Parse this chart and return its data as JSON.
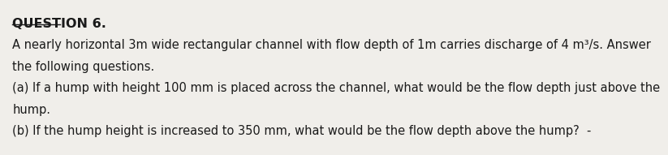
{
  "title": "QUESTION 6.",
  "line1": "A nearly horizontal 3m wide rectangular channel with flow depth of 1m carries discharge of 4 m³/s. Answer",
  "line2": "the following questions.",
  "line3": "(a) If a hump with height 100 mm is placed across the channel, what would be the flow depth just above the",
  "line4": "hump.",
  "line5": "(b) If the hump height is increased to 350 mm, what would be the flow depth above the hump?  -",
  "bg_color": "#f0eeea",
  "text_color": "#1a1a1a",
  "title_fontsize": 11.5,
  "body_fontsize": 10.5
}
